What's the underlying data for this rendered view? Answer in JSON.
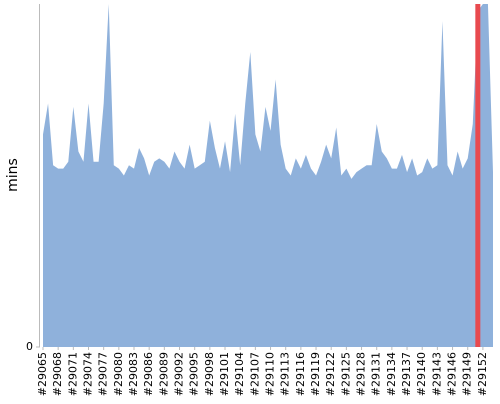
{
  "chart_data": {
    "type": "area",
    "y_label": "mins",
    "categories": [
      "#29065",
      null,
      null,
      "#29068",
      null,
      null,
      "#29071",
      null,
      null,
      "#29074",
      null,
      null,
      "#29077",
      null,
      null,
      "#29080",
      null,
      null,
      "#29083",
      null,
      null,
      "#29086",
      null,
      null,
      "#29089",
      null,
      null,
      "#29092",
      null,
      null,
      "#29095",
      null,
      null,
      "#29098",
      null,
      null,
      "#29101",
      null,
      null,
      "#29104",
      null,
      null,
      "#29107",
      null,
      null,
      "#29110",
      null,
      null,
      "#29113",
      null,
      null,
      "#29116",
      null,
      null,
      "#29119",
      null,
      null,
      "#29122",
      null,
      null,
      "#29125",
      null,
      null,
      "#29128",
      null,
      null,
      "#29131",
      null,
      null,
      "#29134",
      null,
      null,
      "#29137",
      null,
      null,
      "#29140",
      null,
      null,
      "#29143",
      null,
      null,
      "#29146",
      null,
      null,
      "#29149",
      null,
      null,
      "#29152",
      null,
      null
    ],
    "values": [
      62,
      71,
      53,
      52,
      52,
      54,
      70,
      57,
      54,
      71,
      54,
      54,
      71,
      100,
      53,
      52,
      50,
      53,
      52,
      58,
      55,
      50,
      54,
      55,
      54,
      52,
      57,
      54,
      52,
      59,
      52,
      53,
      54,
      66,
      58,
      52,
      60,
      51,
      68,
      53,
      71,
      86,
      62,
      57,
      70,
      63,
      78,
      59,
      52,
      50,
      55,
      52,
      56,
      52,
      50,
      54,
      59,
      55,
      64,
      50,
      52,
      49,
      51,
      52,
      53,
      53,
      65,
      57,
      55,
      52,
      52,
      56,
      51,
      55,
      50,
      51,
      55,
      52,
      53,
      95,
      53,
      50,
      57,
      52,
      55,
      65,
      98,
      100,
      100,
      51
    ],
    "color": "#8fb1db",
    "ylim": [
      0,
      100
    ],
    "yticks": [
      0
    ],
    "highlight": {
      "index": 86,
      "color": "#e84a4f"
    }
  }
}
